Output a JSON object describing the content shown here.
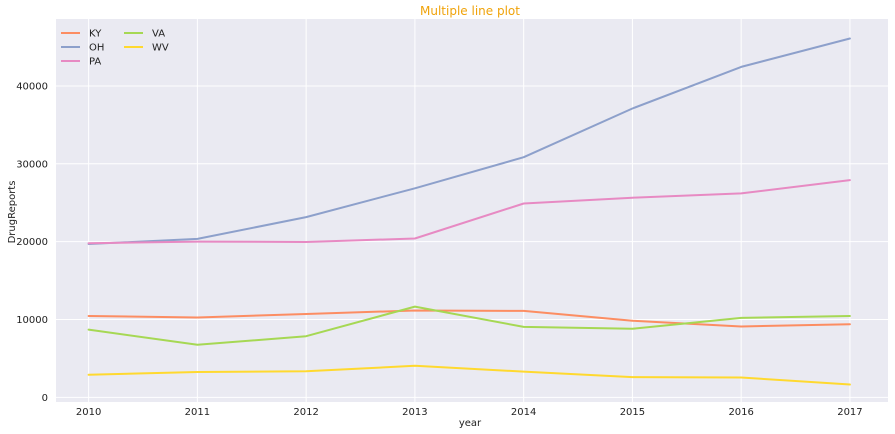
{
  "chart_data": {
    "type": "line",
    "title": "Multiple line plot",
    "title_color": "#f0a30a",
    "xlabel": "year",
    "ylabel": "DrugReports",
    "x": [
      2010,
      2011,
      2012,
      2013,
      2014,
      2015,
      2016,
      2017
    ],
    "xlim": [
      2009.7,
      2017.35
    ],
    "ylim": [
      -600,
      48600
    ],
    "yticks": [
      0,
      10000,
      20000,
      30000,
      40000
    ],
    "grid": true,
    "legend_position": "top-left",
    "background": "#eaeaf2",
    "series": [
      {
        "name": "KY",
        "color": "#fc8d62",
        "values": [
          10450,
          10250,
          10700,
          11150,
          11100,
          9850,
          9100,
          9400
        ]
      },
      {
        "name": "OH",
        "color": "#8da0cb",
        "values": [
          19700,
          20350,
          23150,
          26850,
          30850,
          37100,
          42450,
          46100
        ]
      },
      {
        "name": "PA",
        "color": "#e78ac3",
        "values": [
          19800,
          20000,
          19950,
          20400,
          24900,
          25650,
          26200,
          27900
        ]
      },
      {
        "name": "VA",
        "color": "#a6d854",
        "values": [
          8700,
          6750,
          7850,
          11650,
          9050,
          8800,
          10200,
          10450
        ]
      },
      {
        "name": "WV",
        "color": "#ffd92f",
        "values": [
          2900,
          3250,
          3350,
          4050,
          3300,
          2600,
          2550,
          1650
        ]
      }
    ]
  }
}
